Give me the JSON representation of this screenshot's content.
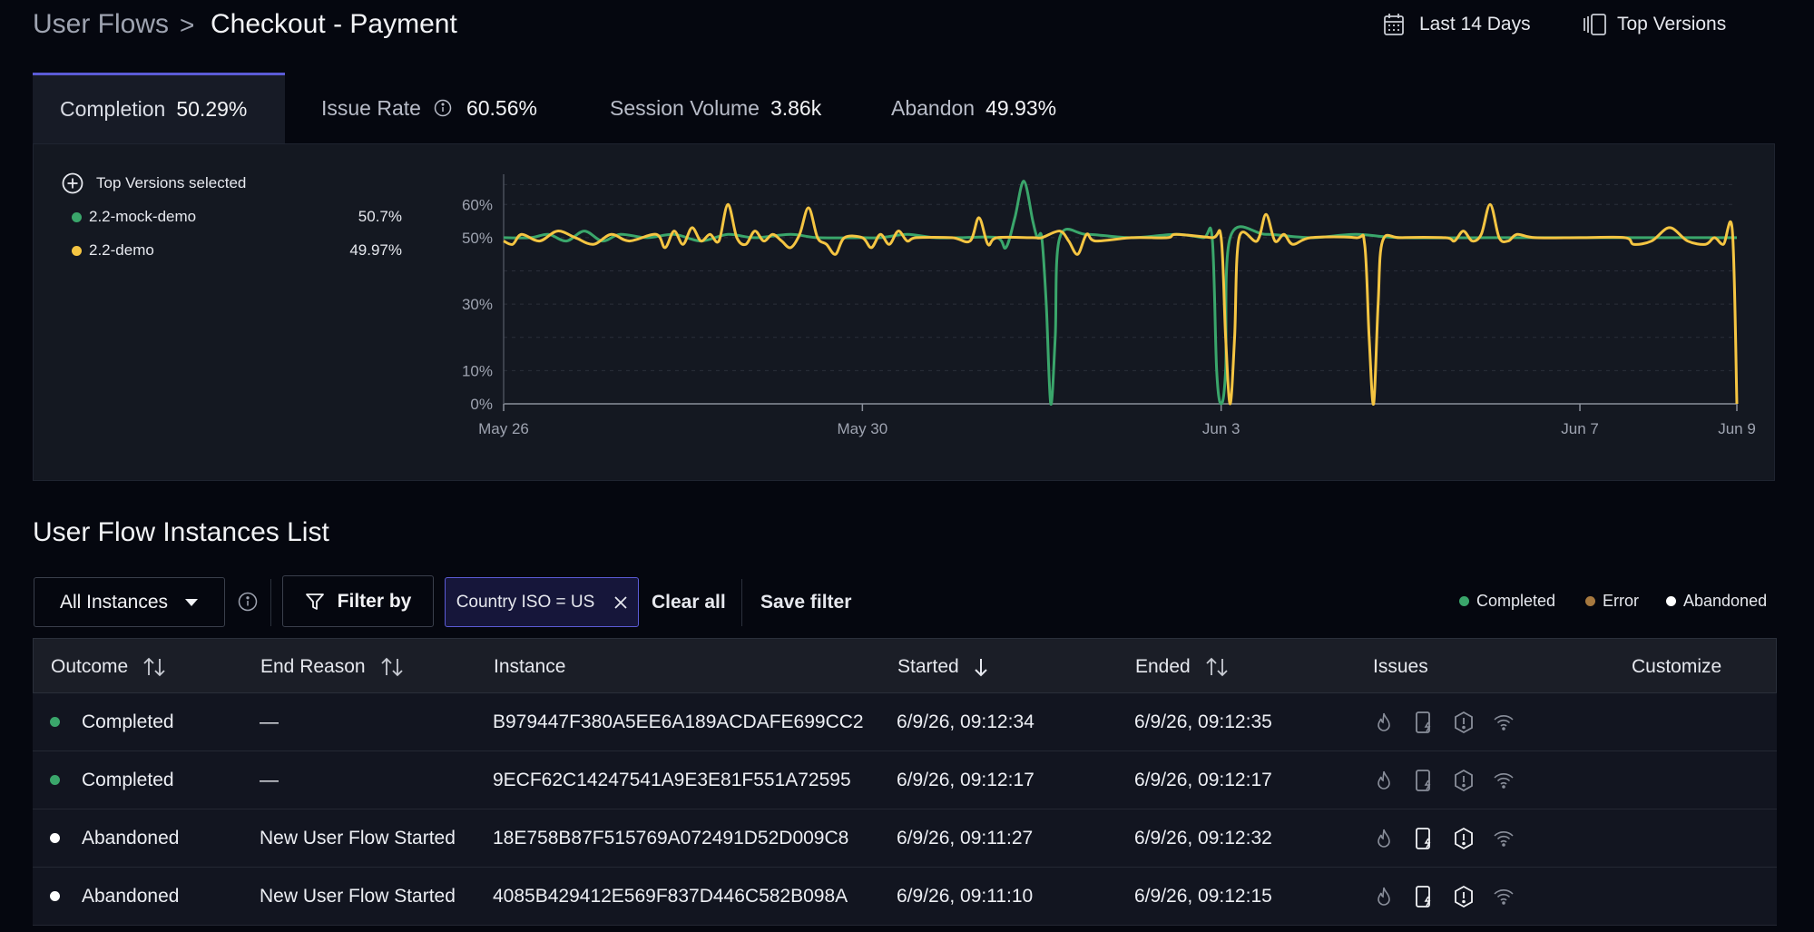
{
  "header": {
    "breadcrumb_root": "User Flows",
    "breadcrumb_sep": ">",
    "title": "Checkout - Payment",
    "date_range": "Last 14 Days",
    "versions_button": "Top Versions"
  },
  "tabs": [
    {
      "label": "Completion",
      "value": "50.29%",
      "active": true
    },
    {
      "label": "Issue Rate",
      "value": "60.56%",
      "info": true
    },
    {
      "label": "Session Volume",
      "value": "3.86k"
    },
    {
      "label": "Abandon",
      "value": "49.93%"
    }
  ],
  "legend": {
    "title": "Top Versions selected",
    "items": [
      {
        "name": "2.2-mock-demo",
        "value": "50.7%",
        "color": "#3aa66b"
      },
      {
        "name": "2.2-demo",
        "value": "49.97%",
        "color": "#f5c542"
      }
    ]
  },
  "chart_data": {
    "type": "line",
    "x_ticks": [
      "May 26",
      "May 30",
      "Jun 3",
      "Jun 7",
      "Jun 9"
    ],
    "y_ticks": [
      "0%",
      "10%",
      "30%",
      "50%",
      "60%"
    ],
    "ylim": [
      0,
      68
    ],
    "grid": true,
    "series": [
      {
        "name": "2.2-mock-demo",
        "color": "#3aa66b",
        "points": [
          [
            0,
            50
          ],
          [
            0.3,
            50
          ],
          [
            0.5,
            51
          ],
          [
            0.7,
            49
          ],
          [
            0.9,
            52
          ],
          [
            1.1,
            49
          ],
          [
            1.3,
            51
          ],
          [
            1.6,
            50
          ],
          [
            1.9,
            51
          ],
          [
            2.2,
            49
          ],
          [
            2.5,
            51
          ],
          [
            2.8,
            50
          ],
          [
            3.2,
            51
          ],
          [
            3.5,
            50
          ],
          [
            4.0,
            50
          ],
          [
            4.2,
            50
          ],
          [
            4.5,
            51
          ],
          [
            4.8,
            50
          ],
          [
            5.1,
            50
          ],
          [
            5.5,
            50
          ],
          [
            5.6,
            47
          ],
          [
            5.7,
            56
          ],
          [
            5.8,
            67
          ],
          [
            5.9,
            55
          ],
          [
            5.95,
            50
          ],
          [
            6.0,
            50
          ],
          [
            6.05,
            30
          ],
          [
            6.1,
            0
          ],
          [
            6.15,
            20
          ],
          [
            6.2,
            50
          ],
          [
            6.5,
            51
          ],
          [
            7.0,
            50
          ],
          [
            7.5,
            51
          ],
          [
            7.8,
            50
          ],
          [
            7.9,
            50
          ],
          [
            7.95,
            10
          ],
          [
            8.0,
            0
          ],
          [
            8.05,
            10
          ],
          [
            8.1,
            50
          ],
          [
            8.5,
            51
          ],
          [
            9.0,
            50
          ],
          [
            9.5,
            51
          ],
          [
            10.0,
            50
          ],
          [
            11.0,
            50
          ],
          [
            12.0,
            50
          ],
          [
            13.0,
            50
          ],
          [
            13.5,
            50
          ],
          [
            13.75,
            50
          ]
        ]
      },
      {
        "name": "2.2-demo",
        "color": "#f5c542",
        "points": [
          [
            0,
            49
          ],
          [
            0.1,
            48
          ],
          [
            0.2,
            51
          ],
          [
            0.4,
            49
          ],
          [
            0.6,
            52
          ],
          [
            0.8,
            50
          ],
          [
            1.0,
            48
          ],
          [
            1.2,
            51
          ],
          [
            1.4,
            49
          ],
          [
            1.7,
            51
          ],
          [
            1.8,
            47
          ],
          [
            1.9,
            52
          ],
          [
            2.0,
            48
          ],
          [
            2.1,
            53
          ],
          [
            2.2,
            49
          ],
          [
            2.3,
            51
          ],
          [
            2.4,
            49
          ],
          [
            2.5,
            60
          ],
          [
            2.6,
            50
          ],
          [
            2.7,
            48
          ],
          [
            2.8,
            52
          ],
          [
            2.9,
            49
          ],
          [
            3.0,
            51
          ],
          [
            3.1,
            49
          ],
          [
            3.2,
            47
          ],
          [
            3.3,
            51
          ],
          [
            3.4,
            59
          ],
          [
            3.5,
            50
          ],
          [
            3.6,
            48
          ],
          [
            3.7,
            45
          ],
          [
            3.8,
            50
          ],
          [
            4.0,
            50
          ],
          [
            4.1,
            47
          ],
          [
            4.2,
            51
          ],
          [
            4.3,
            48
          ],
          [
            4.4,
            52
          ],
          [
            4.5,
            49
          ],
          [
            4.6,
            50
          ],
          [
            5.0,
            50
          ],
          [
            5.2,
            49
          ],
          [
            5.3,
            56
          ],
          [
            5.4,
            48
          ],
          [
            5.5,
            50
          ],
          [
            5.9,
            50
          ],
          [
            6.0,
            50
          ],
          [
            6.2,
            52
          ],
          [
            6.3,
            49
          ],
          [
            6.4,
            45
          ],
          [
            6.5,
            51
          ],
          [
            6.6,
            49
          ],
          [
            7.0,
            50
          ],
          [
            7.4,
            50
          ],
          [
            7.5,
            51
          ],
          [
            7.9,
            50
          ],
          [
            8.0,
            50
          ],
          [
            8.05,
            20
          ],
          [
            8.1,
            0
          ],
          [
            8.15,
            20
          ],
          [
            8.2,
            50
          ],
          [
            8.4,
            49
          ],
          [
            8.5,
            57
          ],
          [
            8.6,
            49
          ],
          [
            8.7,
            51
          ],
          [
            8.8,
            48
          ],
          [
            9.0,
            50
          ],
          [
            9.5,
            50
          ],
          [
            9.6,
            48
          ],
          [
            9.65,
            20
          ],
          [
            9.7,
            0
          ],
          [
            9.75,
            30
          ],
          [
            9.8,
            49
          ],
          [
            10.0,
            50
          ],
          [
            10.5,
            50
          ],
          [
            10.6,
            49
          ],
          [
            10.7,
            52
          ],
          [
            10.8,
            49
          ],
          [
            10.9,
            51
          ],
          [
            11.0,
            60
          ],
          [
            11.1,
            50
          ],
          [
            11.2,
            49
          ],
          [
            11.3,
            51
          ],
          [
            11.5,
            50
          ],
          [
            12.0,
            50
          ],
          [
            12.5,
            50
          ],
          [
            12.6,
            48
          ],
          [
            12.8,
            49
          ],
          [
            13.0,
            53
          ],
          [
            13.2,
            49
          ],
          [
            13.4,
            48
          ],
          [
            13.5,
            50
          ],
          [
            13.6,
            48
          ],
          [
            13.7,
            52
          ],
          [
            13.75,
            0
          ]
        ]
      }
    ]
  },
  "list": {
    "title": "User Flow Instances List",
    "instances_select": "All Instances",
    "filter_by": "Filter by",
    "active_filter": "Country ISO = US",
    "clear_all": "Clear all",
    "save_filter": "Save filter",
    "status_legend": [
      {
        "label": "Completed",
        "color": "#3aa66b"
      },
      {
        "label": "Error",
        "color": "#a7793f"
      },
      {
        "label": "Abandoned",
        "color": "#ffffff"
      }
    ],
    "columns": {
      "outcome": "Outcome",
      "end_reason": "End Reason",
      "instance": "Instance",
      "started": "Started",
      "ended": "Ended",
      "issues": "Issues",
      "customize": "Customize"
    },
    "rows": [
      {
        "outcome": "Completed",
        "dot": "#3aa66b",
        "end_reason": "—",
        "instance": "B979447F380A5EE6A189ACDAFE699CC2",
        "started": "6/9/26, 09:12:34",
        "ended": "6/9/26, 09:12:35",
        "issues_active": false
      },
      {
        "outcome": "Completed",
        "dot": "#3aa66b",
        "end_reason": "—",
        "instance": "9ECF62C14247541A9E3E81F551A72595",
        "started": "6/9/26, 09:12:17",
        "ended": "6/9/26, 09:12:17",
        "issues_active": false
      },
      {
        "outcome": "Abandoned",
        "dot": "#ffffff",
        "end_reason": "New User Flow Started",
        "instance": "18E758B87F515769A072491D52D009C8",
        "started": "6/9/26, 09:11:27",
        "ended": "6/9/26, 09:12:32",
        "issues_active": true
      },
      {
        "outcome": "Abandoned",
        "dot": "#ffffff",
        "end_reason": "New User Flow Started",
        "instance": "4085B429412E569F837D446C582B098A",
        "started": "6/9/26, 09:11:10",
        "ended": "6/9/26, 09:12:15",
        "issues_active": true
      }
    ]
  }
}
